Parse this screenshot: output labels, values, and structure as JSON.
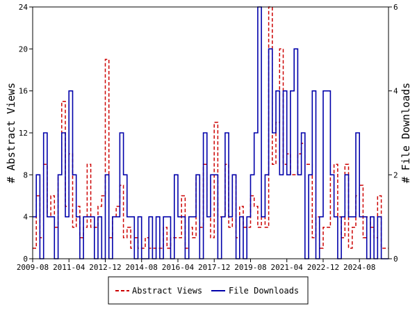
{
  "chart_data": {
    "type": "line",
    "title": "",
    "ylabel": "# Abstract Views",
    "y2label": "# File Downloads",
    "ylim": [
      0,
      24
    ],
    "y2lim": [
      0,
      6
    ],
    "yticks": [
      "0",
      "4",
      "8",
      "12",
      "16",
      "20",
      "24"
    ],
    "y2ticks": [
      "0",
      "2",
      "4",
      "6"
    ],
    "xlim": [
      "2009-08",
      "2025-12"
    ],
    "xticks": [
      "2009-08",
      "2011-04",
      "2012-12",
      "2014-08",
      "2016-04",
      "2017-12",
      "2019-08",
      "2021-04",
      "2022-12",
      "2024-08"
    ],
    "legend_position": "bottom",
    "colors": {
      "abstract_views": "#cc0000",
      "file_downloads": "#0000aa"
    },
    "series": [
      {
        "name": "Abstract Views",
        "axis": "left",
        "style": "dashed",
        "x": [
          "2009-08",
          "2009-10",
          "2009-12",
          "2010-02",
          "2010-04",
          "2010-06",
          "2010-08",
          "2010-10",
          "2010-12",
          "2011-02",
          "2011-04",
          "2011-06",
          "2011-08",
          "2011-10",
          "2011-12",
          "2012-02",
          "2012-04",
          "2012-06",
          "2012-08",
          "2012-10",
          "2012-12",
          "2013-02",
          "2013-04",
          "2013-06",
          "2013-08",
          "2013-10",
          "2013-12",
          "2014-02",
          "2014-04",
          "2014-06",
          "2014-08",
          "2014-10",
          "2014-12",
          "2015-02",
          "2015-04",
          "2015-06",
          "2015-08",
          "2015-10",
          "2015-12",
          "2016-02",
          "2016-04",
          "2016-06",
          "2016-08",
          "2016-10",
          "2016-12",
          "2017-02",
          "2017-04",
          "2017-06",
          "2017-08",
          "2017-10",
          "2017-12",
          "2018-02",
          "2018-04",
          "2018-06",
          "2018-08",
          "2018-10",
          "2018-12",
          "2019-02",
          "2019-04",
          "2019-06",
          "2019-08",
          "2019-10",
          "2019-12",
          "2020-02",
          "2020-04",
          "2020-06",
          "2020-08",
          "2020-10",
          "2020-12",
          "2021-02",
          "2021-04",
          "2021-06",
          "2021-08",
          "2021-10",
          "2021-12",
          "2022-02",
          "2022-04",
          "2022-06",
          "2022-08",
          "2022-10",
          "2022-12",
          "2023-02",
          "2023-04",
          "2023-06",
          "2023-08",
          "2023-10",
          "2023-12",
          "2024-02",
          "2024-04",
          "2024-06",
          "2024-08",
          "2024-10",
          "2024-12",
          "2025-02",
          "2025-04",
          "2025-06",
          "2025-08"
        ],
        "values": [
          1,
          6,
          2,
          9,
          4,
          6,
          3,
          8,
          15,
          5,
          10,
          3,
          5,
          2,
          3,
          9,
          3,
          3,
          5,
          6,
          19,
          2,
          4,
          5,
          7,
          2,
          3,
          1,
          2,
          1,
          1,
          2,
          1,
          1,
          1,
          1,
          3,
          1,
          2,
          2,
          2,
          6,
          1,
          3,
          2,
          8,
          3,
          9,
          4,
          2,
          13,
          4,
          4,
          9,
          3,
          8,
          2,
          5,
          3,
          3,
          6,
          5,
          3,
          4,
          3,
          24,
          9,
          13,
          20,
          9,
          10,
          8,
          8,
          10,
          11,
          9,
          9,
          2,
          4,
          1,
          3,
          3,
          8,
          9,
          4,
          2,
          9,
          1,
          3,
          6,
          7,
          2,
          4,
          3,
          2,
          6,
          1
        ]
      },
      {
        "name": "File Downloads",
        "axis": "right",
        "style": "solid",
        "x": [
          "2009-08",
          "2009-10",
          "2009-12",
          "2010-02",
          "2010-04",
          "2010-06",
          "2010-08",
          "2010-10",
          "2010-12",
          "2011-02",
          "2011-04",
          "2011-06",
          "2011-08",
          "2011-10",
          "2011-12",
          "2012-02",
          "2012-04",
          "2012-06",
          "2012-08",
          "2012-10",
          "2012-12",
          "2013-02",
          "2013-04",
          "2013-06",
          "2013-08",
          "2013-10",
          "2013-12",
          "2014-02",
          "2014-04",
          "2014-06",
          "2014-08",
          "2014-10",
          "2014-12",
          "2015-02",
          "2015-04",
          "2015-06",
          "2015-08",
          "2015-10",
          "2015-12",
          "2016-02",
          "2016-04",
          "2016-06",
          "2016-08",
          "2016-10",
          "2016-12",
          "2017-02",
          "2017-04",
          "2017-06",
          "2017-08",
          "2017-10",
          "2017-12",
          "2018-02",
          "2018-04",
          "2018-06",
          "2018-08",
          "2018-10",
          "2018-12",
          "2019-02",
          "2019-04",
          "2019-06",
          "2019-08",
          "2019-10",
          "2019-12",
          "2020-02",
          "2020-04",
          "2020-06",
          "2020-08",
          "2020-10",
          "2020-12",
          "2021-02",
          "2021-04",
          "2021-06",
          "2021-08",
          "2021-10",
          "2021-12",
          "2022-02",
          "2022-04",
          "2022-06",
          "2022-08",
          "2022-10",
          "2022-12",
          "2023-02",
          "2023-04",
          "2023-06",
          "2023-08",
          "2023-10",
          "2023-12",
          "2024-02",
          "2024-04",
          "2024-06",
          "2024-08",
          "2024-10",
          "2024-12",
          "2025-02",
          "2025-04",
          "2025-06",
          "2025-08"
        ],
        "values": [
          1,
          2,
          0,
          3,
          1,
          1,
          0,
          2,
          3,
          1,
          4,
          2,
          1,
          0,
          1,
          1,
          1,
          0,
          1,
          0,
          2,
          0,
          1,
          1,
          3,
          2,
          1,
          1,
          0,
          1,
          0,
          0,
          1,
          0,
          1,
          0,
          1,
          1,
          0,
          2,
          1,
          1,
          0,
          1,
          1,
          2,
          0,
          3,
          1,
          2,
          2,
          0,
          1,
          3,
          1,
          2,
          0,
          1,
          0,
          1,
          2,
          3,
          6,
          1,
          2,
          5,
          3,
          4,
          2,
          4,
          2,
          4,
          5,
          2,
          3,
          0,
          2,
          4,
          0,
          1,
          4,
          4,
          2,
          1,
          0,
          1,
          2,
          1,
          1,
          3,
          1,
          1,
          0,
          1,
          0,
          1,
          0
        ]
      }
    ]
  }
}
